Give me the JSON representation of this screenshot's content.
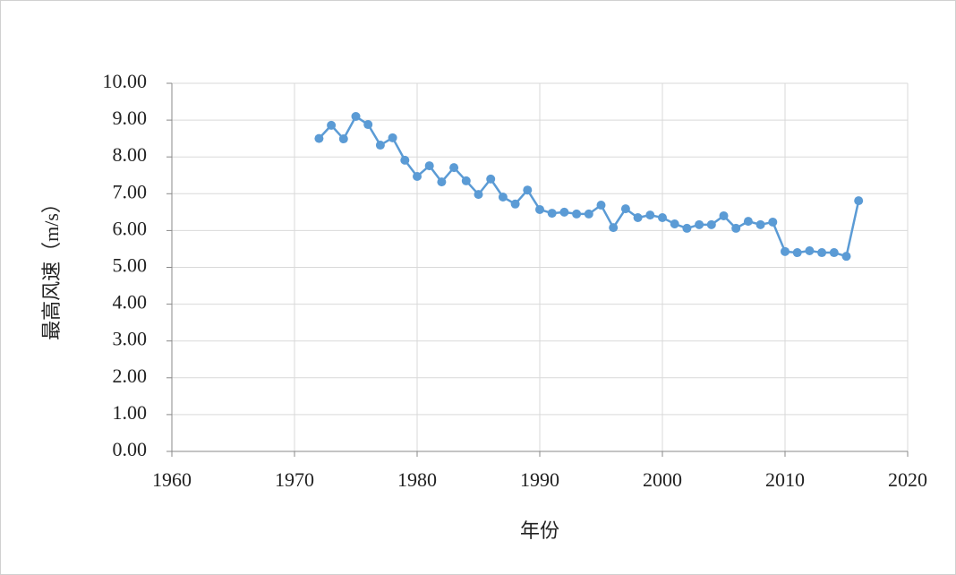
{
  "chart_data": {
    "type": "line",
    "x_label": "年份",
    "y_label": "最高风速（m/s）",
    "x": [
      1972,
      1973,
      1974,
      1975,
      1976,
      1977,
      1978,
      1979,
      1980,
      1981,
      1982,
      1983,
      1984,
      1985,
      1986,
      1987,
      1988,
      1989,
      1990,
      1991,
      1992,
      1993,
      1994,
      1995,
      1996,
      1997,
      1998,
      1999,
      2000,
      2001,
      2002,
      2003,
      2004,
      2005,
      2006,
      2007,
      2008,
      2009,
      2010,
      2011,
      2012,
      2013,
      2014,
      2015,
      2016
    ],
    "values": [
      8.5,
      8.86,
      8.49,
      9.1,
      8.88,
      8.32,
      8.52,
      7.91,
      7.47,
      7.76,
      7.32,
      7.71,
      7.35,
      6.98,
      7.4,
      6.91,
      6.72,
      7.1,
      6.57,
      6.47,
      6.5,
      6.45,
      6.45,
      6.69,
      6.08,
      6.59,
      6.35,
      6.42,
      6.35,
      6.18,
      6.06,
      6.16,
      6.16,
      6.4,
      6.06,
      6.25,
      6.16,
      6.23,
      5.43,
      5.4,
      5.45,
      5.4,
      5.4,
      5.3,
      6.81
    ],
    "color": "#5b9bd5",
    "xlim": [
      1960,
      2020
    ],
    "xticks": [
      1960,
      1970,
      1980,
      1990,
      2000,
      2010,
      2020
    ],
    "ylim": [
      0,
      10
    ],
    "yticks": [
      {
        "value": 0,
        "label": "0.00"
      },
      {
        "value": 1,
        "label": "1.00"
      },
      {
        "value": 2,
        "label": "2.00"
      },
      {
        "value": 3,
        "label": "3.00"
      },
      {
        "value": 4,
        "label": "4.00"
      },
      {
        "value": 5,
        "label": "5.00"
      },
      {
        "value": 6,
        "label": "6.00"
      },
      {
        "value": 7,
        "label": "7.00"
      },
      {
        "value": 8,
        "label": "8.00"
      },
      {
        "value": 9,
        "label": "9.00"
      },
      {
        "value": 10,
        "label": "10.00"
      }
    ],
    "grid": true
  }
}
